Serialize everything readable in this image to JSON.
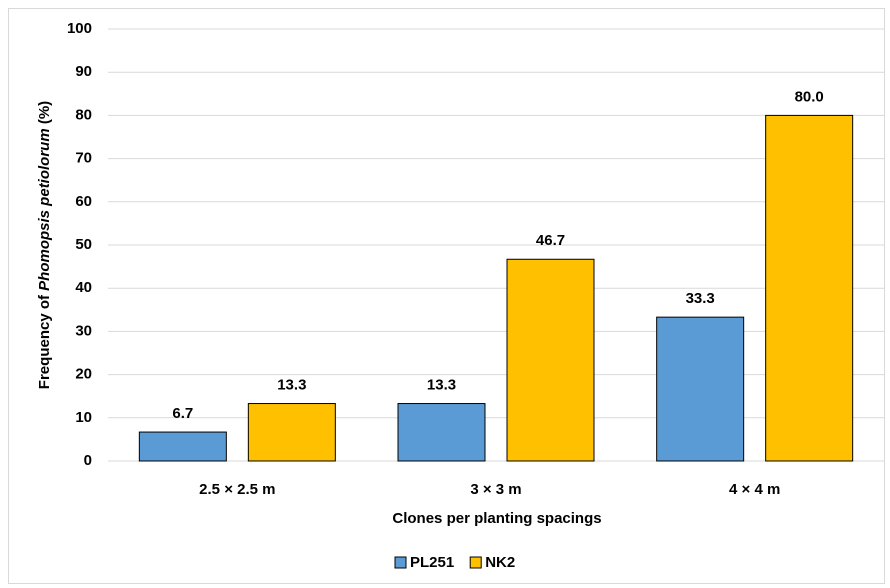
{
  "chart_data": {
    "type": "bar",
    "y_label": [
      "Frequency of ",
      "Phomopsis petiolorum",
      " (%)"
    ],
    "x_label": "Clones per planting spacings",
    "categories": [
      "2.5 × 2.5 m",
      "3 × 3 m",
      "4 × 4 m"
    ],
    "series": [
      {
        "name": "PL251",
        "color": "#5b9bd5",
        "values": [
          6.7,
          13.3,
          33.3
        ],
        "value_labels": [
          "6.7",
          "13.3",
          "33.3"
        ]
      },
      {
        "name": "NK2",
        "color": "#ffc000",
        "values": [
          13.3,
          46.7,
          80
        ],
        "value_labels": [
          "13.3",
          "46.7",
          "80.0"
        ]
      }
    ],
    "ylim": [
      0,
      100
    ],
    "yticks": [
      0,
      10,
      20,
      30,
      40,
      50,
      60,
      70,
      80,
      90,
      100
    ],
    "grid": true,
    "legend": "bottom"
  }
}
